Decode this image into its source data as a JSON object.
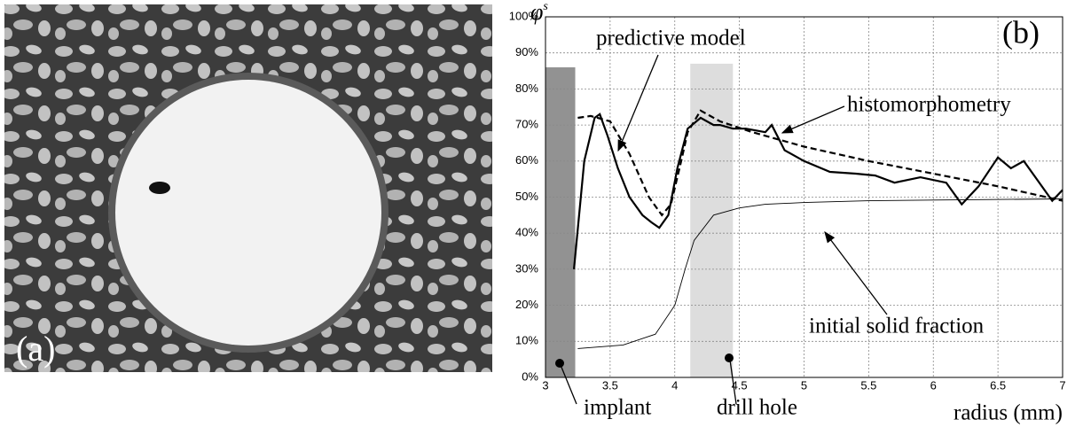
{
  "panel_a": {
    "label": "(a)"
  },
  "chart_data": {
    "type": "line",
    "panel_label": "(b)",
    "y_label": "φ",
    "y_label_sup": "s",
    "x_label": "radius (mm)",
    "xlim": [
      3,
      7
    ],
    "xticks": [
      3,
      3.5,
      4,
      4.5,
      5,
      5.5,
      6,
      6.5,
      7
    ],
    "ylim": [
      0,
      100
    ],
    "yticks": [
      {
        "value": 0,
        "label": "0%"
      },
      {
        "value": 10,
        "label": "10%"
      },
      {
        "value": 20,
        "label": "20%"
      },
      {
        "value": 30,
        "label": "30%"
      },
      {
        "value": 40,
        "label": "40%"
      },
      {
        "value": 50,
        "label": "50%"
      },
      {
        "value": 60,
        "label": "60%"
      },
      {
        "value": 70,
        "label": "70%"
      },
      {
        "value": 80,
        "label": "80%"
      },
      {
        "value": 90,
        "label": "90%"
      },
      {
        "value": 100,
        "label": "100%"
      }
    ],
    "grid": true,
    "shaded_regions": [
      {
        "name": "implant",
        "xlim": [
          3,
          3.23
        ],
        "top": 86,
        "color": "#777777"
      },
      {
        "name": "drill hole",
        "xlim": [
          4.12,
          4.45
        ],
        "top": 87,
        "color": "#d4d4d4"
      }
    ],
    "series": [
      {
        "name": "histomorphometry",
        "color": "#000000",
        "style": "solid",
        "x": [
          3.22,
          3.3,
          3.38,
          3.42,
          3.48,
          3.56,
          3.65,
          3.75,
          3.82,
          3.88,
          3.95,
          4.02,
          4.1,
          4.2,
          4.3,
          4.35,
          4.45,
          4.55,
          4.7,
          4.75,
          4.85,
          5.0,
          5.2,
          5.4,
          5.55,
          5.7,
          5.9,
          6.1,
          6.22,
          6.35,
          6.5,
          6.6,
          6.7,
          6.8,
          6.92,
          7.0
        ],
        "values": [
          30,
          60,
          72,
          73,
          67,
          58,
          50,
          45,
          43,
          41.5,
          45,
          58,
          69,
          72,
          70,
          70,
          69,
          69,
          68,
          70,
          63,
          60,
          57,
          56.5,
          56,
          54,
          55.5,
          54,
          48,
          53,
          61,
          58,
          60,
          55,
          49,
          52
        ]
      },
      {
        "name": "predictive model",
        "color": "#000000",
        "style": "dashed",
        "x": [
          3.25,
          3.35,
          3.5,
          3.65,
          3.8,
          3.9,
          3.97,
          4.05,
          4.1,
          4.2,
          4.35,
          4.6,
          5.0,
          5.5,
          6.0,
          6.5,
          7.0
        ],
        "values": [
          72,
          72.5,
          71,
          62,
          50,
          45,
          48,
          60,
          68,
          74,
          71,
          68,
          64,
          60,
          56.5,
          53,
          49
        ]
      },
      {
        "name": "initial solid fraction",
        "color": "#000000",
        "style": "thin",
        "x": [
          3.25,
          3.6,
          3.85,
          4.0,
          4.08,
          4.15,
          4.3,
          4.5,
          4.7,
          5.0,
          5.5,
          6.0,
          7.0
        ],
        "values": [
          8,
          9,
          12,
          20,
          30,
          38,
          45,
          47,
          48,
          48.5,
          49,
          49.2,
          49.5
        ]
      }
    ]
  }
}
